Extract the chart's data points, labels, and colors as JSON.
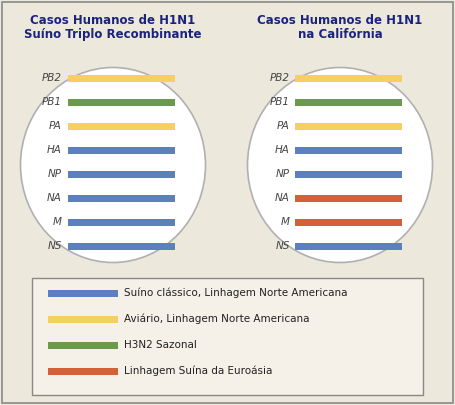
{
  "bg_color": "#ede8dc",
  "title_left_line1": "Casos Humanos de H1N1",
  "title_left_line2": "Suíno Triplo Recombinante",
  "title_right_line1": "Casos Humanos de H1N1",
  "title_right_line2": "na Califórnia",
  "title_color": "#1a237e",
  "title_fontsize": 8.5,
  "segments": [
    "PB2",
    "PB1",
    "PA",
    "HA",
    "NP",
    "NA",
    "M",
    "NS"
  ],
  "colors_left": [
    "#f5d060",
    "#6a9a4a",
    "#f5d060",
    "#5b7fbf",
    "#5b7fbf",
    "#5b7fbf",
    "#5b7fbf",
    "#5b7fbf"
  ],
  "colors_right": [
    "#f5d060",
    "#6a9a4a",
    "#f5d060",
    "#5b7fbf",
    "#5b7fbf",
    "#d45f38",
    "#d45f38",
    "#5b7fbf"
  ],
  "legend_items": [
    {
      "color": "#5b7fbf",
      "label": "Suíno clássico, Linhagem Norte Americana"
    },
    {
      "color": "#f5d060",
      "label": "Aviário, Linhagem Norte Americana"
    },
    {
      "color": "#6a9a4a",
      "label": "H3N2 Sazonal"
    },
    {
      "color": "#d45f38",
      "label": "Linhagem Suína da Euroásia"
    }
  ],
  "ellipse_edge_color": "#b0b0b0",
  "legend_box_edge_color": "#888888",
  "legend_box_face_color": "#f5f0e8",
  "label_fontsize": 7.5,
  "legend_fontsize": 7.5,
  "outer_border_color": "#888888"
}
